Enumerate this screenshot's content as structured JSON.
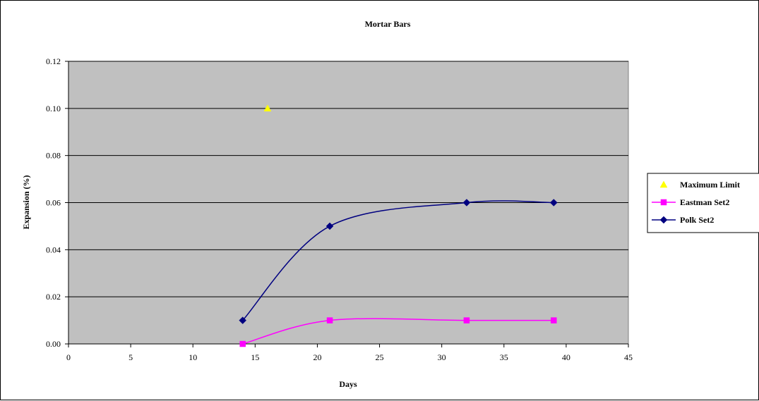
{
  "chart_data": {
    "type": "scatter",
    "title": "Mortar Bars",
    "xlabel": "Days",
    "ylabel": "Expansion (%)",
    "xlim": [
      0,
      45
    ],
    "ylim": [
      0,
      0.12
    ],
    "x_ticks": [
      "0",
      "5",
      "10",
      "15",
      "20",
      "25",
      "30",
      "35",
      "40",
      "45"
    ],
    "y_ticks": [
      "0.00",
      "0.02",
      "0.04",
      "0.06",
      "0.08",
      "0.10",
      "0.12"
    ],
    "grid": "horizontal",
    "plot_background": "#c0c0c0",
    "legend_position": "right",
    "series": [
      {
        "name": "Maximum Limit",
        "marker": "triangle",
        "color": "#ffff00",
        "line": false,
        "points": [
          [
            16,
            0.1
          ]
        ]
      },
      {
        "name": "Eastman Set2",
        "marker": "square",
        "color": "#ff00ff",
        "line": true,
        "smooth": true,
        "points": [
          [
            14,
            0.0
          ],
          [
            21,
            0.01
          ],
          [
            32,
            0.01
          ],
          [
            39,
            0.01
          ]
        ]
      },
      {
        "name": "Polk Set2",
        "marker": "diamond",
        "color": "#000080",
        "line": true,
        "smooth": true,
        "points": [
          [
            14,
            0.01
          ],
          [
            21,
            0.05
          ],
          [
            32,
            0.06
          ],
          [
            39,
            0.06
          ]
        ]
      }
    ]
  }
}
